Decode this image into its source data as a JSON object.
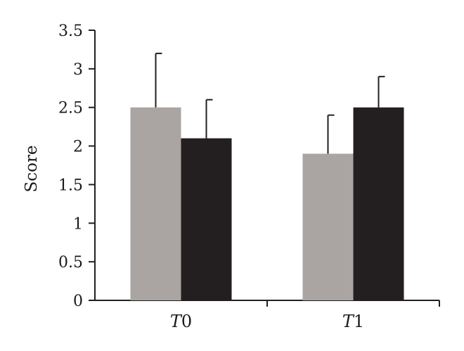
{
  "chart_data": {
    "type": "bar",
    "categories": [
      "T0",
      "T1"
    ],
    "category_parts": [
      {
        "italic": "T",
        "rest": "0"
      },
      {
        "italic": "T",
        "rest": "1"
      }
    ],
    "series": [
      {
        "values": [
          2.5,
          1.9
        ],
        "errors": [
          0.7,
          0.5
        ],
        "color": "#aaa5a3"
      },
      {
        "values": [
          2.1,
          2.5
        ],
        "errors": [
          0.5,
          0.4
        ],
        "color": "#231f20"
      }
    ],
    "title": "",
    "xlabel": "",
    "ylabel": "Score",
    "ylim": [
      0,
      3.5
    ],
    "yticks": [
      0,
      0.5,
      1,
      1.5,
      2,
      2.5,
      3,
      3.5
    ],
    "ytick_labels": [
      "0",
      "0.5",
      "1",
      "1.5",
      "2",
      "2.5",
      "3",
      "3.5"
    ],
    "grid": false,
    "legend": "none"
  }
}
